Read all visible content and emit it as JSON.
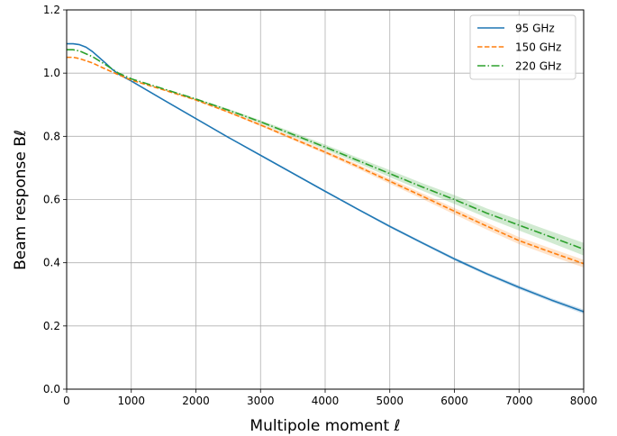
{
  "chart_data": {
    "type": "line",
    "xlabel": "Multipole moment ℓ",
    "ylabel": "Beam response Bℓ",
    "xlim": [
      0,
      8000
    ],
    "ylim": [
      0.0,
      1.2
    ],
    "grid": true,
    "legend_position": "top-right",
    "x_ticks": [
      "0",
      "1000",
      "2000",
      "3000",
      "4000",
      "5000",
      "6000",
      "7000",
      "8000"
    ],
    "y_ticks": [
      "0.0",
      "0.2",
      "0.4",
      "0.6",
      "0.8",
      "1.0",
      "1.2"
    ],
    "x_tick_values": [
      0,
      1000,
      2000,
      3000,
      4000,
      5000,
      6000,
      7000,
      8000
    ],
    "y_tick_values": [
      0.0,
      0.2,
      0.4,
      0.6,
      0.8,
      1.0,
      1.2
    ],
    "series": [
      {
        "name": "95 GHz",
        "color": "#1f77b4",
        "style": "solid",
        "x": [
          0,
          100,
          200,
          300,
          400,
          500,
          600,
          700,
          800,
          1000,
          1500,
          2000,
          2500,
          3000,
          3500,
          4000,
          4500,
          5000,
          5500,
          6000,
          6500,
          7000,
          7500,
          8000
        ],
        "y": [
          1.093,
          1.093,
          1.09,
          1.082,
          1.068,
          1.05,
          1.032,
          1.013,
          0.997,
          0.975,
          0.915,
          0.856,
          0.797,
          0.74,
          0.683,
          0.626,
          0.57,
          0.515,
          0.463,
          0.412,
          0.365,
          0.322,
          0.282,
          0.245
        ],
        "band": [
          0.0,
          0.0,
          0.0,
          0.0,
          0.0,
          0.0,
          0.0,
          0.0,
          0.0,
          0.0,
          0.001,
          0.001,
          0.001,
          0.002,
          0.002,
          0.003,
          0.003,
          0.004,
          0.004,
          0.005,
          0.005,
          0.006,
          0.006,
          0.007
        ]
      },
      {
        "name": "150 GHz",
        "color": "#ff7f0e",
        "style": "dashed",
        "x": [
          0,
          100,
          200,
          400,
          600,
          800,
          1000,
          1500,
          2000,
          2500,
          3000,
          3500,
          4000,
          4500,
          5000,
          5500,
          6000,
          6500,
          7000,
          7500,
          8000
        ],
        "y": [
          1.05,
          1.05,
          1.046,
          1.032,
          1.013,
          0.995,
          0.978,
          0.947,
          0.915,
          0.877,
          0.836,
          0.793,
          0.75,
          0.705,
          0.658,
          0.611,
          0.563,
          0.516,
          0.47,
          0.433,
          0.397
        ],
        "band": [
          0.0,
          0.0,
          0.0,
          0.0,
          0.0,
          0.0,
          0.0,
          0.001,
          0.002,
          0.003,
          0.004,
          0.005,
          0.006,
          0.007,
          0.008,
          0.009,
          0.01,
          0.011,
          0.011,
          0.012,
          0.012
        ]
      },
      {
        "name": "220 GHz",
        "color": "#2ca02c",
        "style": "dashdot",
        "x": [
          0,
          100,
          200,
          400,
          600,
          800,
          1000,
          1500,
          2000,
          2500,
          3000,
          3500,
          4000,
          4500,
          5000,
          5500,
          6000,
          6500,
          7000,
          7500,
          8000
        ],
        "y": [
          1.074,
          1.074,
          1.07,
          1.052,
          1.027,
          1.0,
          0.982,
          0.95,
          0.918,
          0.883,
          0.846,
          0.806,
          0.766,
          0.724,
          0.682,
          0.64,
          0.6,
          0.557,
          0.519,
          0.481,
          0.443
        ],
        "band": [
          0.0,
          0.0,
          0.0,
          0.0,
          0.0,
          0.0,
          0.0,
          0.001,
          0.002,
          0.004,
          0.005,
          0.007,
          0.008,
          0.009,
          0.011,
          0.012,
          0.014,
          0.015,
          0.017,
          0.018,
          0.02
        ]
      }
    ]
  }
}
